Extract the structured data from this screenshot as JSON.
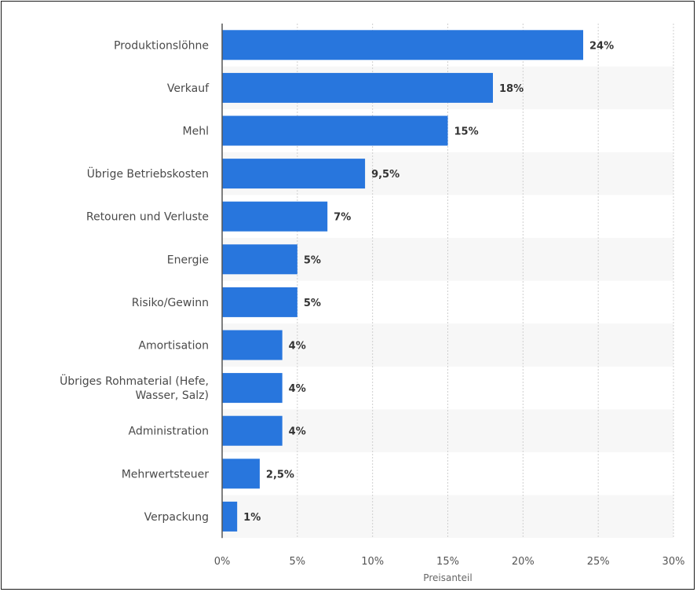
{
  "chart_data": {
    "type": "bar",
    "orientation": "horizontal",
    "categories": [
      "Produktionslöhne",
      "Verkauf",
      "Mehl",
      "Übrige Betriebskosten",
      "Retouren und Verluste",
      "Energie",
      "Risiko/Gewinn",
      "Amortisation",
      "Übriges Rohmaterial (Hefe, Wasser, Salz)",
      "Administration",
      "Mehrwertsteuer",
      "Verpackung"
    ],
    "values": [
      24,
      18,
      15,
      9.5,
      7,
      5,
      5,
      4,
      4,
      4,
      2.5,
      1
    ],
    "value_labels": [
      "24%",
      "18%",
      "15%",
      "9,5%",
      "7%",
      "5%",
      "5%",
      "4%",
      "4%",
      "4%",
      "2,5%",
      "1%"
    ],
    "xlabel": "Preisanteil",
    "ylabel": "",
    "xlim": [
      0,
      30
    ],
    "x_ticks": [
      0,
      5,
      10,
      15,
      20,
      25,
      30
    ],
    "x_tick_labels": [
      "0%",
      "5%",
      "10%",
      "15%",
      "20%",
      "25%",
      "30%"
    ],
    "grid": true,
    "bar_color": "#2876dd"
  }
}
